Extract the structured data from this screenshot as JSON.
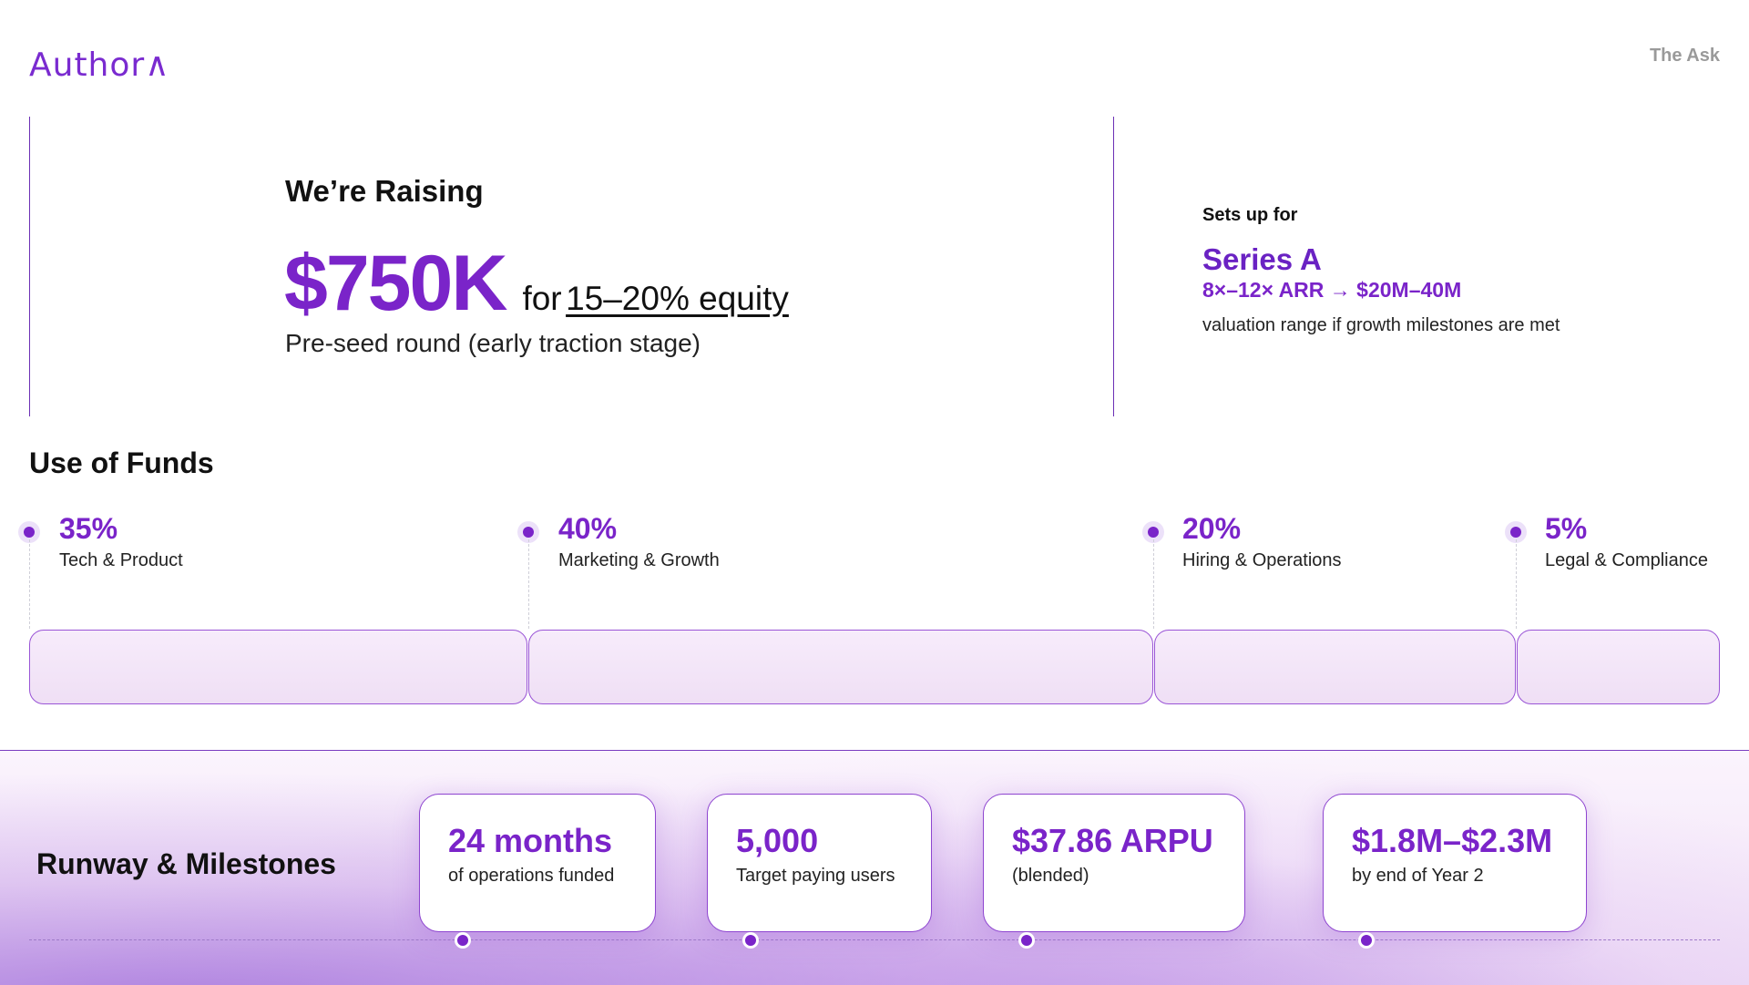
{
  "header": {
    "logo_text": "Author∧",
    "section_tag": "The Ask"
  },
  "raise": {
    "title": "We’re Raising",
    "amount": "$750K",
    "for_text": "for",
    "equity_text": "15–20% equity",
    "subtitle": "Pre-seed round (early traction stage)"
  },
  "series": {
    "label": "Sets up for",
    "name": "Series A",
    "range": "8×–12× ARR → $20M–40M",
    "note": "valuation range if growth milestones are met"
  },
  "funds": {
    "title": "Use of Funds",
    "items": [
      {
        "percent": "35%",
        "label": "Tech & Product",
        "share": 35
      },
      {
        "percent": "40%",
        "label": "Marketing & Growth",
        "share": 40
      },
      {
        "percent": "20%",
        "label": "Hiring & Operations",
        "share": 20
      },
      {
        "percent": "5%",
        "label": "Legal & Compliance",
        "share": 5
      }
    ]
  },
  "runway": {
    "title": "Runway & Milestones",
    "milestones": [
      {
        "value": "24 months",
        "label": "of operations funded"
      },
      {
        "value": "5,000",
        "label": "Target paying users"
      },
      {
        "value": "$37.86 ARPU",
        "label": "(blended)"
      },
      {
        "value": "$1.8M–$2.3M",
        "label": "by end of Year 2"
      }
    ]
  },
  "colors": {
    "accent": "#7a24c9",
    "accent_dark": "#6a22c3",
    "bar_fill": "#f3e6f8",
    "bar_border": "#9a55d6",
    "muted": "#9a9a9a"
  }
}
